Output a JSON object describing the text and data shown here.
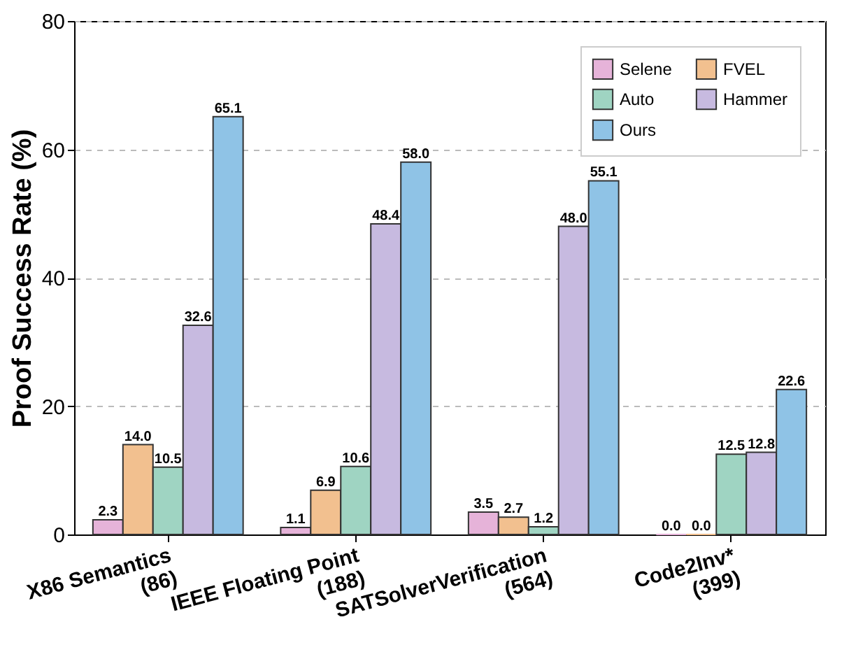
{
  "chart_data": {
    "type": "bar",
    "ylabel": "Proof Success Rate (%)",
    "categories": [
      "X86 Semantics\n(86)",
      "IEEE Floating Point\n(188)",
      "SATSolverVerification\n(564)",
      "Code2Inv*\n(399)"
    ],
    "series": [
      {
        "name": "Selene",
        "color": "#e6b3d9",
        "values": [
          2.3,
          1.1,
          3.5,
          0.0
        ]
      },
      {
        "name": "FVEL",
        "color": "#f2c08f",
        "values": [
          14.0,
          6.9,
          2.7,
          0.0
        ]
      },
      {
        "name": "Auto",
        "color": "#9fd4c2",
        "values": [
          10.5,
          10.6,
          1.2,
          12.5
        ]
      },
      {
        "name": "Hammer",
        "color": "#c7bae0",
        "values": [
          32.6,
          48.4,
          48.0,
          12.8
        ]
      },
      {
        "name": "Ours",
        "color": "#8fc3e6",
        "values": [
          65.1,
          58.0,
          55.1,
          22.6
        ]
      }
    ],
    "ylim": [
      0,
      80
    ],
    "yticks": [
      0,
      20,
      40,
      60,
      80
    ],
    "grid": "y",
    "legend": "top right",
    "value_labels": [
      [
        "2.3",
        "1.1",
        "3.5",
        "0.0"
      ],
      [
        "14.0",
        "6.9",
        "2.7",
        "0.0"
      ],
      [
        "10.5",
        "10.6",
        "1.2",
        "12.5"
      ],
      [
        "32.6",
        "48.4",
        "48.0",
        "12.8"
      ],
      [
        "65.1",
        "58.0",
        "55.1",
        "22.6"
      ]
    ]
  }
}
